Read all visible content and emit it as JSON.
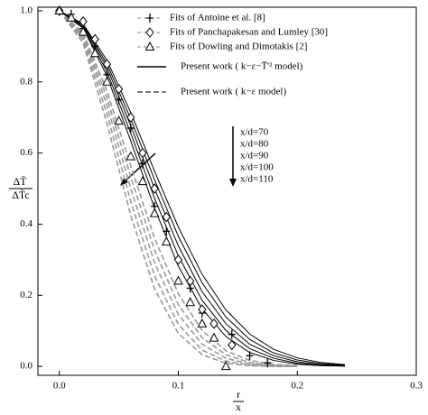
{
  "chart_data": {
    "type": "line",
    "xlim": [
      -0.018,
      0.3
    ],
    "ylim": [
      -0.025,
      1.01
    ],
    "xticks": [
      {
        "value": 0,
        "label": "0.0"
      },
      {
        "value": 0.1,
        "label": "0.1"
      },
      {
        "value": 0.2,
        "label": "0.2"
      },
      {
        "value": 0.3,
        "label": "0.3"
      }
    ],
    "yticks": [
      {
        "value": 0,
        "label": "0.0"
      },
      {
        "value": 0.2,
        "label": "0.2"
      },
      {
        "value": 0.4,
        "label": "0.4"
      },
      {
        "value": 0.6,
        "label": "0.6"
      },
      {
        "value": 0.8,
        "label": "0.8"
      },
      {
        "value": 1,
        "label": "1.0"
      }
    ],
    "x_label": {
      "top": "r",
      "bottom": "x"
    },
    "y_label": {
      "top": "ΔT̄",
      "bottom": "ΔT̄c"
    },
    "annotations": [
      "x/d=70",
      "x/d=80",
      "x/d=90",
      "x/d=100",
      "x/d=110"
    ],
    "series": [
      {
        "name": "Fits of Antoine et al. [8]",
        "marker": "plus",
        "color": "#000",
        "x": [
          0,
          0.01,
          0.02,
          0.03,
          0.04,
          0.05,
          0.06,
          0.07,
          0.08,
          0.09,
          0.1,
          0.11,
          0.12,
          0.13,
          0.145,
          0.16,
          0.175
        ],
        "values": [
          1,
          0.99,
          0.95,
          0.9,
          0.82,
          0.75,
          0.67,
          0.57,
          0.45,
          0.38,
          0.3,
          0.22,
          0.15,
          0.12,
          0.09,
          0.03,
          0.01
        ]
      },
      {
        "name": "Fits of Panchapakesan and Lumley [30]",
        "marker": "diamond",
        "color": "#000",
        "x": [
          0,
          0.02,
          0.03,
          0.04,
          0.05,
          0.06,
          0.07,
          0.08,
          0.09,
          0.1,
          0.11,
          0.12,
          0.13,
          0.145
        ],
        "values": [
          1,
          0.97,
          0.92,
          0.85,
          0.78,
          0.7,
          0.6,
          0.5,
          0.42,
          0.3,
          0.24,
          0.16,
          0.12,
          0.06
        ]
      },
      {
        "name": "Fits of Dowling and Dimotakis [2]",
        "marker": "triangle",
        "color": "#000",
        "x": [
          0,
          0.01,
          0.02,
          0.03,
          0.04,
          0.05,
          0.06,
          0.07,
          0.08,
          0.09,
          0.1,
          0.11,
          0.12,
          0.13,
          0.14
        ],
        "values": [
          1,
          0.98,
          0.94,
          0.88,
          0.8,
          0.69,
          0.59,
          0.52,
          0.43,
          0.35,
          0.24,
          0.18,
          0.12,
          0.08,
          0
        ]
      }
    ],
    "curves": [
      {
        "name": "Present work ( k−ε−T̄'² model)",
        "dash": false,
        "color": "#000",
        "x": [
          0,
          0.02,
          0.04,
          0.06,
          0.08,
          0.1,
          0.12,
          0.14,
          0.16,
          0.18,
          0.2,
          0.22,
          0.24
        ],
        "lines": [
          [
            1,
            0.951,
            0.817,
            0.634,
            0.445,
            0.282,
            0.162,
            0.084,
            0.039,
            0.017,
            0.006,
            0.002,
            0.001
          ],
          [
            1,
            0.954,
            0.829,
            0.656,
            0.473,
            0.311,
            0.186,
            0.101,
            0.05,
            0.023,
            0.009,
            0.003,
            0.001
          ],
          [
            1,
            0.958,
            0.841,
            0.677,
            0.5,
            0.339,
            0.21,
            0.12,
            0.0625,
            0.03,
            0.013,
            0.005,
            0.002
          ],
          [
            1,
            0.961,
            0.851,
            0.696,
            0.525,
            0.366,
            0.235,
            0.139,
            0.076,
            0.038,
            0.018,
            0.008,
            0.003
          ],
          [
            1,
            0.963,
            0.861,
            0.714,
            0.549,
            0.392,
            0.259,
            0.159,
            0.091,
            0.048,
            0.024,
            0.011,
            0.005
          ]
        ]
      },
      {
        "name": "Present work ( k−ε model)",
        "dash": true,
        "color": "#999",
        "x": [
          0,
          0.02,
          0.04,
          0.06,
          0.08,
          0.1,
          0.12,
          0.14,
          0.16,
          0.18,
          0.2
        ],
        "lines": [
          [
            1,
            0.909,
            0.684,
            0.425,
            0.218,
            0.093,
            0.033,
            0.009,
            0.002,
            0,
            0
          ],
          [
            1,
            0.918,
            0.711,
            0.464,
            0.255,
            0.118,
            0.046,
            0.015,
            0.004,
            0.001,
            0
          ],
          [
            1,
            0.926,
            0.735,
            0.5,
            0.292,
            0.146,
            0.0625,
            0.023,
            0.007,
            0.002,
            0
          ],
          [
            1,
            0.932,
            0.756,
            0.533,
            0.327,
            0.174,
            0.081,
            0.033,
            0.011,
            0.003,
            0.001
          ],
          [
            1,
            0.938,
            0.775,
            0.564,
            0.361,
            0.204,
            0.101,
            0.044,
            0.017,
            0.006,
            0.002
          ]
        ]
      }
    ]
  }
}
